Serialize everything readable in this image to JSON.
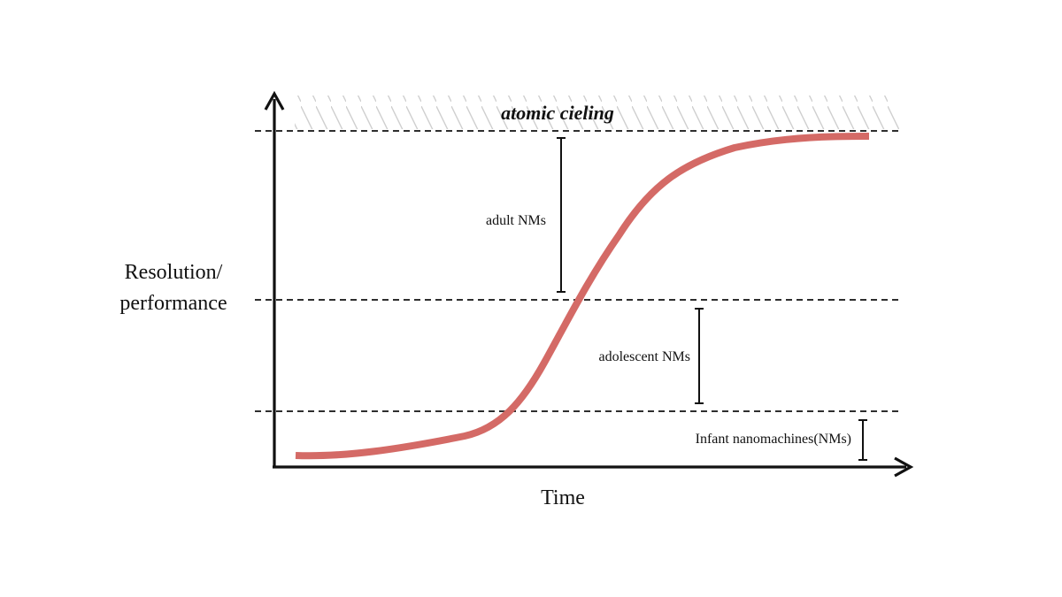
{
  "diagram": {
    "y_axis_label_line1": "Resolution/",
    "y_axis_label_line2": "performance",
    "x_axis_label": "Time",
    "ceiling_label": "atomic cieling",
    "stages": {
      "adult": "adult NMs",
      "adolescent": "adolescent NMs",
      "infant": "Infant nanomachines(NMs)"
    },
    "colors": {
      "curve": "#d46a66",
      "axis": "#111111",
      "hatch": "#cfcfcf",
      "dashed": "#111111"
    }
  }
}
